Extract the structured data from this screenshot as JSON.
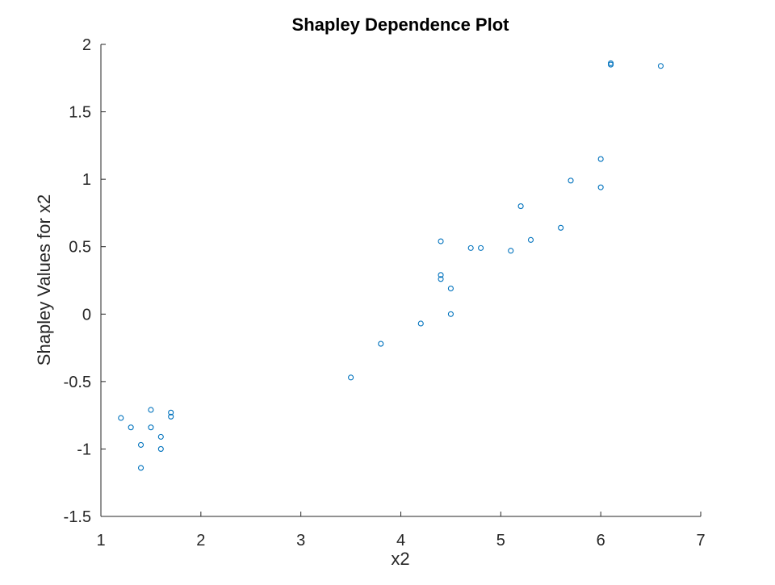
{
  "chart_data": {
    "type": "scatter",
    "title": "Shapley Dependence Plot",
    "xlabel": "x2",
    "ylabel": "Shapley Values for x2",
    "xlim": [
      1,
      7
    ],
    "ylim": [
      -1.5,
      2
    ],
    "xticks": [
      "1",
      "2",
      "3",
      "4",
      "5",
      "6",
      "7"
    ],
    "yticks": [
      "-1.5",
      "-1",
      "-0.5",
      "0",
      "0.5",
      "1",
      "1.5",
      "2"
    ],
    "grid": false,
    "marker_color": "#0072BD",
    "points": [
      {
        "x": 1.2,
        "y": -0.77
      },
      {
        "x": 1.3,
        "y": -0.84
      },
      {
        "x": 1.4,
        "y": -0.97
      },
      {
        "x": 1.4,
        "y": -1.14
      },
      {
        "x": 1.5,
        "y": -0.71
      },
      {
        "x": 1.5,
        "y": -0.84
      },
      {
        "x": 1.6,
        "y": -0.91
      },
      {
        "x": 1.6,
        "y": -1.0
      },
      {
        "x": 1.7,
        "y": -0.73
      },
      {
        "x": 1.7,
        "y": -0.76
      },
      {
        "x": 3.5,
        "y": -0.47
      },
      {
        "x": 3.8,
        "y": -0.22
      },
      {
        "x": 4.2,
        "y": -0.07
      },
      {
        "x": 4.4,
        "y": 0.54
      },
      {
        "x": 4.4,
        "y": 0.29
      },
      {
        "x": 4.4,
        "y": 0.26
      },
      {
        "x": 4.5,
        "y": 0.19
      },
      {
        "x": 4.5,
        "y": 0.0
      },
      {
        "x": 4.7,
        "y": 0.49
      },
      {
        "x": 4.8,
        "y": 0.49
      },
      {
        "x": 5.1,
        "y": 0.47
      },
      {
        "x": 5.2,
        "y": 0.8
      },
      {
        "x": 5.3,
        "y": 0.55
      },
      {
        "x": 5.6,
        "y": 0.64
      },
      {
        "x": 5.7,
        "y": 0.99
      },
      {
        "x": 6.0,
        "y": 1.15
      },
      {
        "x": 6.0,
        "y": 0.94
      },
      {
        "x": 6.1,
        "y": 1.86
      },
      {
        "x": 6.1,
        "y": 1.85
      },
      {
        "x": 6.6,
        "y": 1.84
      }
    ]
  }
}
